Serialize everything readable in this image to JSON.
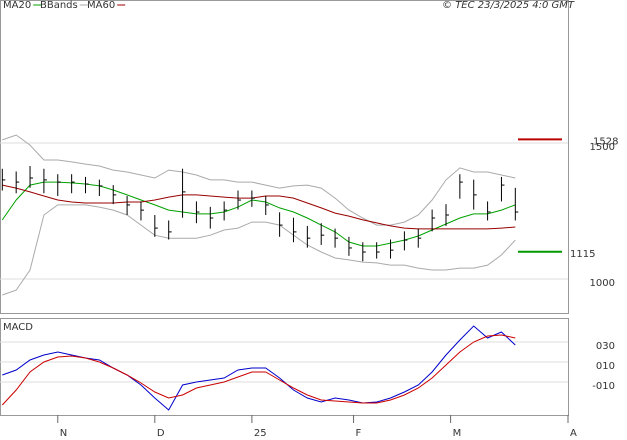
{
  "chart_data": [
    {
      "type": "hlc",
      "source": "© TEC 23/3/2025 4:0 GMT",
      "x": [
        -12,
        -9,
        -6,
        -3,
        0,
        3,
        6,
        9,
        12,
        15,
        18,
        21,
        24,
        27,
        30,
        33,
        36,
        39,
        42,
        45,
        48,
        51,
        54,
        57,
        60,
        63,
        66,
        69,
        72,
        75,
        78,
        81,
        84,
        87,
        90,
        93,
        96,
        99
      ],
      "high": [
        1420,
        1410,
        1430,
        1420,
        1400,
        1400,
        1390,
        1380,
        1360,
        1320,
        1300,
        1250,
        1230,
        1420,
        1300,
        1280,
        1300,
        1340,
        1340,
        1320,
        1260,
        1240,
        1210,
        1220,
        1200,
        1170,
        1150,
        1150,
        1160,
        1190,
        1200,
        1270,
        1290,
        1400,
        1380,
        1300,
        1390,
        1350
      ],
      "low": [
        1340,
        1330,
        1350,
        1330,
        1320,
        1330,
        1330,
        1320,
        1290,
        1250,
        1230,
        1170,
        1160,
        1240,
        1220,
        1200,
        1230,
        1270,
        1280,
        1250,
        1170,
        1150,
        1130,
        1140,
        1130,
        1100,
        1080,
        1090,
        1090,
        1120,
        1130,
        1190,
        1210,
        1310,
        1270,
        1230,
        1300,
        1230
      ],
      "close": [
        1379,
        1371,
        1386,
        1379,
        1371,
        1371,
        1364,
        1357,
        1324,
        1287,
        1268,
        1202,
        1188,
        1335,
        1261,
        1239,
        1268,
        1305,
        1312,
        1287,
        1213,
        1188,
        1165,
        1176,
        1165,
        1129,
        1114,
        1114,
        1121,
        1158,
        1165,
        1239,
        1250,
        1371,
        1324,
        1261,
        1360,
        1261
      ],
      "color": "#000000",
      "series": [
        {
          "name": "MA20",
          "color": "#00a000",
          "values": [
            1232,
            1305,
            1360,
            1371,
            1371,
            1368,
            1364,
            1357,
            1342,
            1324,
            1305,
            1287,
            1268,
            1261,
            1254,
            1254,
            1261,
            1279,
            1305,
            1298,
            1276,
            1261,
            1239,
            1213,
            1188,
            1151,
            1136,
            1136,
            1147,
            1158,
            1173,
            1195,
            1217,
            1239,
            1254,
            1254,
            1268,
            1287
          ]
        },
        {
          "name": "BBands",
          "color": "#aaaaaa",
          "values": [
            1526,
            1544,
            1507,
            1452,
            1452,
            1445,
            1437,
            1430,
            1415,
            1408,
            1397,
            1386,
            1415,
            1408,
            1397,
            1379,
            1379,
            1371,
            1371,
            1360,
            1349,
            1357,
            1360,
            1349,
            1312,
            1268,
            1239,
            1213,
            1213,
            1224,
            1250,
            1305,
            1379,
            1423,
            1408,
            1408,
            1397,
            1386
          ],
          "lower": [
            956,
            974,
            1048,
            1250,
            1287,
            1287,
            1287,
            1279,
            1268,
            1250,
            1213,
            1176,
            1165,
            1165,
            1165,
            1176,
            1195,
            1202,
            1224,
            1224,
            1213,
            1176,
            1140,
            1114,
            1092,
            1085,
            1077,
            1074,
            1066,
            1066,
            1055,
            1048,
            1048,
            1055,
            1055,
            1066,
            1103,
            1158
          ]
        },
        {
          "name": "MA60",
          "color": "#990000",
          "values": [
            1360,
            1349,
            1335,
            1320,
            1305,
            1298,
            1294,
            1294,
            1294,
            1298,
            1298,
            1305,
            1316,
            1324,
            1324,
            1320,
            1316,
            1312,
            1312,
            1320,
            1320,
            1312,
            1294,
            1276,
            1257,
            1246,
            1232,
            1221,
            1210,
            1202,
            1199,
            1199,
            1199,
            1199,
            1199,
            1199,
            1202,
            1206
          ]
        }
      ],
      "levels": [
        {
          "value": 1528,
          "color": "#bb0000"
        },
        {
          "value": 1115,
          "color": "#009900"
        }
      ],
      "xlim": [
        -12.5,
        110.4
      ],
      "ylim": [
        890,
        2040
      ],
      "yticks": [
        1000,
        1500
      ],
      "grid": true
    },
    {
      "type": "line",
      "title": "MACD",
      "x": [
        -12,
        -9,
        -6,
        -3,
        0,
        3,
        6,
        9,
        12,
        15,
        18,
        21,
        24,
        27,
        30,
        33,
        36,
        39,
        42,
        45,
        48,
        51,
        54,
        57,
        60,
        63,
        66,
        69,
        72,
        75,
        78,
        81,
        84,
        87,
        90,
        93,
        96,
        99
      ],
      "series": [
        {
          "color": "#0000cc",
          "values": [
            0.01,
            0.06,
            0.16,
            0.21,
            0.24,
            0.21,
            0.18,
            0.16,
            0.08,
            0.01,
            -0.09,
            -0.22,
            -0.34,
            -0.09,
            -0.06,
            -0.04,
            -0.02,
            0.06,
            0.08,
            0.08,
            -0.02,
            -0.14,
            -0.22,
            -0.26,
            -0.22,
            -0.24,
            -0.27,
            -0.26,
            -0.22,
            -0.16,
            -0.09,
            0.04,
            0.21,
            0.36,
            0.5,
            0.38,
            0.44,
            0.31
          ]
        },
        {
          "color": "#cc0000",
          "values": [
            -0.29,
            -0.14,
            0.04,
            0.14,
            0.19,
            0.2,
            0.18,
            0.14,
            0.08,
            0.01,
            -0.07,
            -0.16,
            -0.22,
            -0.19,
            -0.12,
            -0.09,
            -0.06,
            -0.01,
            0.04,
            0.04,
            -0.04,
            -0.12,
            -0.19,
            -0.24,
            -0.25,
            -0.26,
            -0.27,
            -0.27,
            -0.24,
            -0.19,
            -0.12,
            -0.02,
            0.11,
            0.24,
            0.34,
            0.4,
            0.41,
            0.38
          ]
        }
      ],
      "xlim": [
        -12.5,
        110.4
      ],
      "xticks": [
        {
          "value": 0,
          "label": "N"
        },
        {
          "value": 21,
          "label": "D"
        },
        {
          "value": 42,
          "label": "25"
        },
        {
          "value": 64,
          "label": "F"
        },
        {
          "value": 85,
          "label": "M"
        },
        {
          "value": 110.4,
          "label": "A"
        }
      ],
      "ylim": [
        -0.39,
        0.58
      ],
      "yticks": [
        {
          "value": 0.3,
          "label": "030"
        },
        {
          "value": 0.1,
          "label": "010"
        },
        {
          "value": -0.1,
          "label": "-010"
        }
      ],
      "grid": true
    }
  ]
}
